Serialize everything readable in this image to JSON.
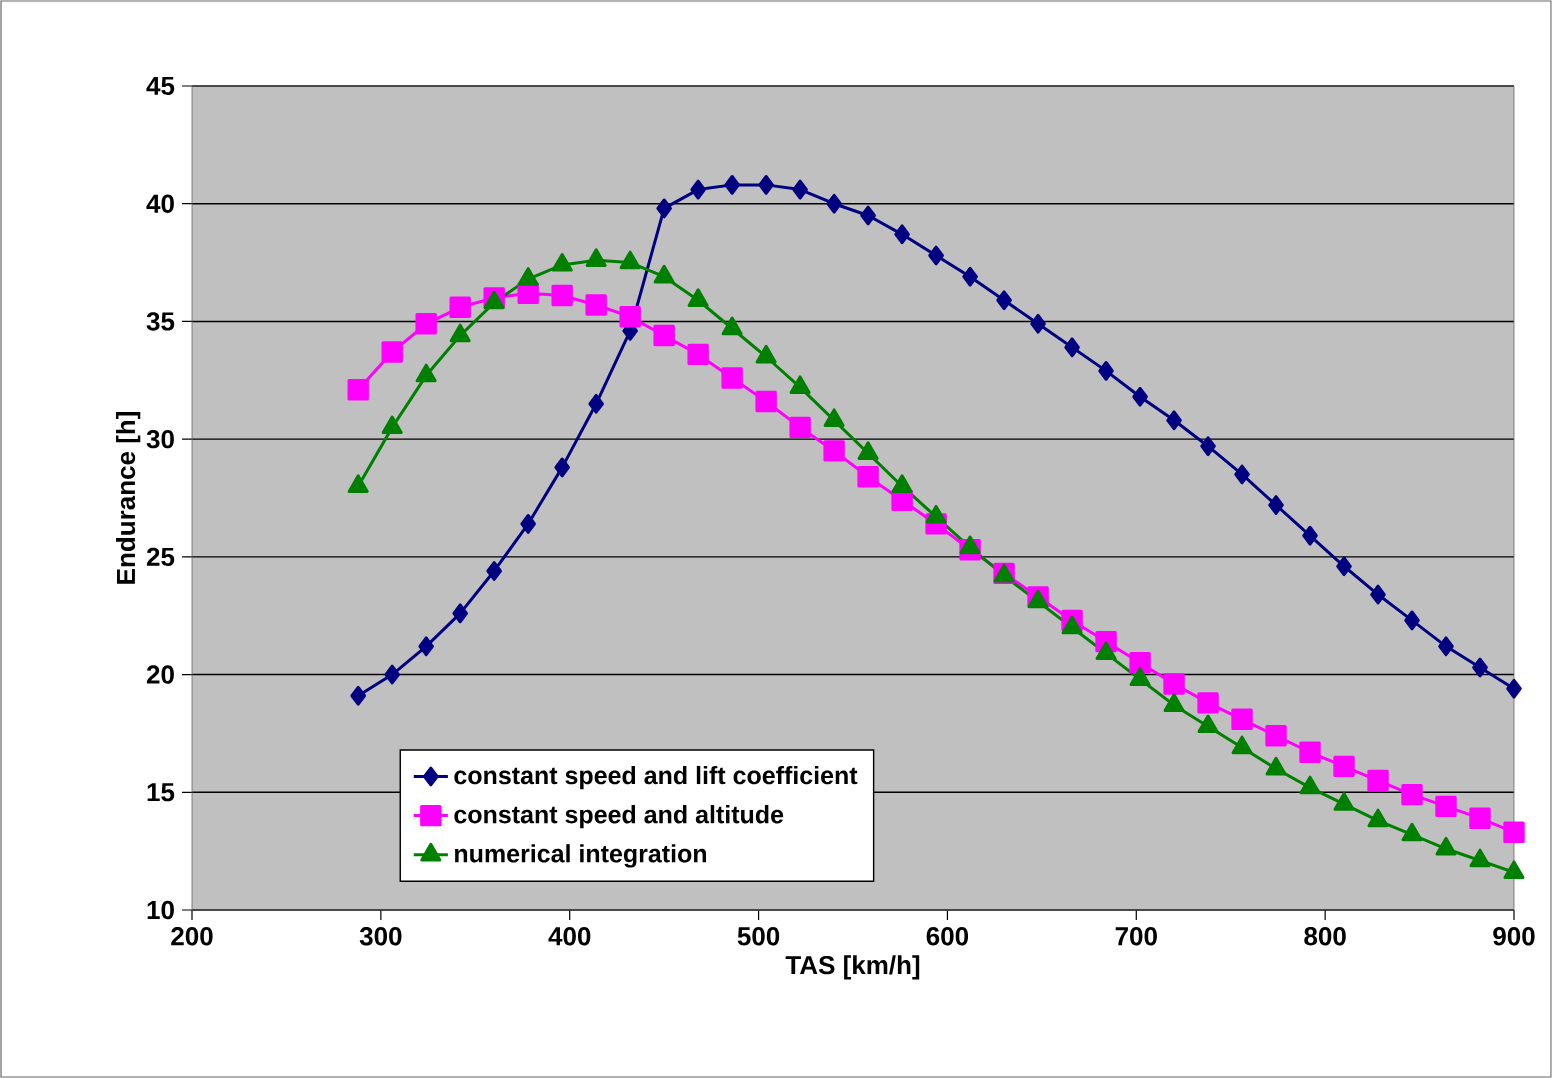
{
  "chart_data": {
    "type": "line",
    "xlabel": "TAS [km/h]",
    "ylabel": "Endurance [h]",
    "x": [
      288,
      306,
      324,
      342,
      360,
      378,
      396,
      414,
      432,
      450,
      468,
      486,
      504,
      522,
      540,
      558,
      576,
      594,
      612,
      630,
      648,
      666,
      684,
      702,
      720,
      738,
      756,
      774,
      792,
      810,
      828,
      846,
      864,
      882,
      900
    ],
    "series": [
      {
        "name": "constant speed and lift coefficient",
        "color": "#000080",
        "marker": "diamond",
        "values": [
          19.1,
          20.0,
          21.2,
          22.6,
          24.4,
          26.4,
          28.8,
          31.5,
          34.6,
          39.8,
          40.6,
          40.8,
          40.8,
          40.6,
          40.0,
          39.5,
          38.7,
          37.8,
          36.9,
          35.9,
          34.9,
          33.9,
          32.9,
          31.8,
          30.8,
          29.7,
          28.5,
          27.2,
          25.9,
          24.6,
          23.4,
          22.3,
          21.2,
          20.3,
          19.4
        ]
      },
      {
        "name": "constant speed and altitude",
        "color": "#ff00ff",
        "marker": "square",
        "values": [
          32.1,
          33.7,
          34.9,
          35.6,
          36.0,
          36.2,
          36.1,
          35.7,
          35.2,
          34.4,
          33.6,
          32.6,
          31.6,
          30.5,
          29.5,
          28.4,
          27.4,
          26.4,
          25.3,
          24.3,
          23.3,
          22.3,
          21.4,
          20.5,
          19.6,
          18.8,
          18.1,
          17.4,
          16.7,
          16.1,
          15.5,
          14.9,
          14.4,
          13.9,
          13.3
        ]
      },
      {
        "name": "numerical integration",
        "color": "#008000",
        "marker": "triangle",
        "values": [
          28.0,
          30.5,
          32.7,
          34.4,
          35.8,
          36.8,
          37.4,
          37.6,
          37.5,
          36.9,
          35.9,
          34.7,
          33.5,
          32.2,
          30.8,
          29.4,
          28.0,
          26.7,
          25.4,
          24.2,
          23.1,
          22.0,
          20.9,
          19.8,
          18.7,
          17.8,
          16.9,
          16.0,
          15.2,
          14.5,
          13.8,
          13.2,
          12.6,
          12.1,
          11.6
        ]
      }
    ],
    "xlim": [
      200,
      900
    ],
    "ylim": [
      10,
      45
    ],
    "xticks": [
      200,
      300,
      400,
      500,
      600,
      700,
      800,
      900
    ],
    "yticks": [
      10,
      15,
      20,
      25,
      30,
      35,
      40,
      45
    ],
    "grid": "y",
    "legend": "bottom",
    "line_style": "solid"
  }
}
